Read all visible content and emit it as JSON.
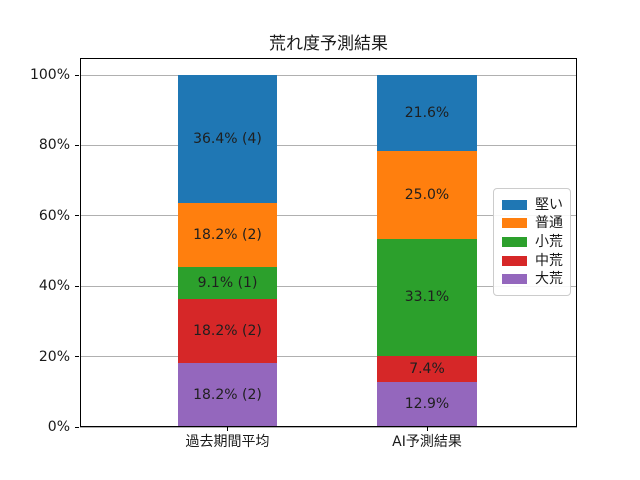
{
  "chart_data": {
    "type": "stacked_bar",
    "title": "荒れ度予測結果",
    "categories": [
      "過去期間平均",
      "AI予測結果"
    ],
    "series": [
      {
        "name": "堅い",
        "color": "#1f77b4",
        "values": [
          36.4,
          21.6
        ],
        "labels": [
          "36.4% (4)",
          "21.6%"
        ]
      },
      {
        "name": "普通",
        "color": "#ff7f0e",
        "values": [
          18.2,
          25.0
        ],
        "labels": [
          "18.2% (2)",
          "25.0%"
        ]
      },
      {
        "name": "小荒",
        "color": "#2ca02c",
        "values": [
          9.1,
          33.1
        ],
        "labels": [
          "9.1% (1)",
          "33.1%"
        ]
      },
      {
        "name": "中荒",
        "color": "#d62728",
        "values": [
          18.2,
          7.4
        ],
        "labels": [
          "18.2% (2)",
          "7.4%"
        ]
      },
      {
        "name": "大荒",
        "color": "#9467bd",
        "values": [
          18.2,
          12.9
        ],
        "labels": [
          "18.2% (2)",
          "12.9%"
        ]
      }
    ],
    "stack_order_note": "series listed top-to-bottom of stack; 大荒 is the bottom segment",
    "y_ticks": [
      {
        "label": "0%",
        "value": 0
      },
      {
        "label": "20%",
        "value": 20
      },
      {
        "label": "40%",
        "value": 40
      },
      {
        "label": "60%",
        "value": 60
      },
      {
        "label": "80%",
        "value": 80
      },
      {
        "label": "100%",
        "value": 100
      }
    ],
    "ylim": [
      0,
      104.8
    ],
    "grid": true,
    "legend_position": "center right",
    "colors": {
      "grid": "#b0b0b0",
      "spine": "#000000",
      "segment_label_text": "#1f1f1f",
      "tick_label_text": "#1a1a1a"
    }
  }
}
